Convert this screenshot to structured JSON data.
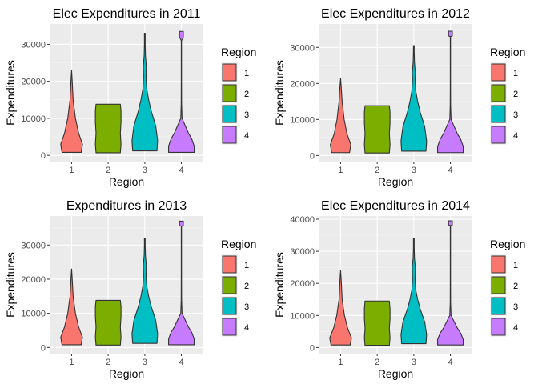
{
  "chart_data": [
    {
      "type": "violin",
      "title": "Elec Expenditures in 2011",
      "xlabel": "Region",
      "ylabel": "Expenditures",
      "categories": [
        "1",
        "2",
        "3",
        "4"
      ],
      "ylim": [
        -1700,
        35500
      ],
      "yticks": [
        0,
        10000,
        20000,
        30000
      ],
      "ytick_labels": [
        "0",
        "10000",
        "20000",
        "30000"
      ],
      "grid": true,
      "legend": {
        "title": "Region",
        "position": "right",
        "labels": [
          "1",
          "2",
          "3",
          "4"
        ]
      },
      "series": [
        {
          "category": "1",
          "color": "#F8766D",
          "min": 800,
          "max": 23000,
          "profile": [
            [
              800,
              0.75
            ],
            [
              3000,
              0.85
            ],
            [
              6000,
              0.55
            ],
            [
              10000,
              0.3
            ],
            [
              15000,
              0.12
            ],
            [
              20000,
              0.05
            ],
            [
              23000,
              0.0
            ]
          ]
        },
        {
          "category": "2",
          "color": "#7CAE00",
          "min": 700,
          "max": 13800,
          "profile": [
            [
              700,
              0.95
            ],
            [
              3000,
              1.0
            ],
            [
              6000,
              0.95
            ],
            [
              9000,
              1.0
            ],
            [
              12000,
              1.0
            ],
            [
              13800,
              0.95
            ]
          ]
        },
        {
          "category": "3",
          "color": "#00BFC4",
          "min": 1200,
          "max": 33000,
          "profile": [
            [
              1200,
              0.95
            ],
            [
              4000,
              1.0
            ],
            [
              8000,
              0.85
            ],
            [
              12000,
              0.5
            ],
            [
              15000,
              0.3
            ],
            [
              18000,
              0.15
            ],
            [
              21000,
              0.1
            ],
            [
              24000,
              0.12
            ],
            [
              27000,
              0.05
            ],
            [
              30000,
              0.03
            ],
            [
              33000,
              0.03
            ]
          ]
        },
        {
          "category": "4",
          "color": "#C77CFF",
          "min": 800,
          "max": 33500,
          "profile": [
            [
              800,
              1.0
            ],
            [
              2500,
              1.0
            ],
            [
              4500,
              0.8
            ],
            [
              6000,
              0.55
            ],
            [
              8000,
              0.3
            ],
            [
              10000,
              0.05
            ],
            [
              14000,
              0.015
            ],
            [
              20000,
              0.01
            ],
            [
              26000,
              0.01
            ],
            [
              31000,
              0.01
            ],
            [
              32000,
              0.15
            ],
            [
              33500,
              0.15
            ]
          ]
        }
      ]
    },
    {
      "type": "violin",
      "title": "Elec Expenditures in 2012",
      "xlabel": "Region",
      "ylabel": "Expenditures",
      "categories": [
        "1",
        "2",
        "3",
        "4"
      ],
      "ylim": [
        -1700,
        36500
      ],
      "yticks": [
        0,
        10000,
        20000,
        30000
      ],
      "ytick_labels": [
        "0",
        "10000",
        "20000",
        "30000"
      ],
      "grid": true,
      "legend": {
        "title": "Region",
        "position": "right",
        "labels": [
          "1",
          "2",
          "3",
          "4"
        ]
      },
      "series": [
        {
          "category": "1",
          "color": "#F8766D",
          "min": 800,
          "max": 21500,
          "profile": [
            [
              800,
              0.7
            ],
            [
              3000,
              0.8
            ],
            [
              6000,
              0.5
            ],
            [
              10000,
              0.28
            ],
            [
              15000,
              0.12
            ],
            [
              19000,
              0.05
            ],
            [
              21500,
              0.0
            ]
          ]
        },
        {
          "category": "2",
          "color": "#7CAE00",
          "min": 700,
          "max": 13800,
          "profile": [
            [
              700,
              0.95
            ],
            [
              3000,
              1.0
            ],
            [
              6000,
              0.95
            ],
            [
              9000,
              1.0
            ],
            [
              12000,
              1.0
            ],
            [
              13800,
              0.95
            ]
          ]
        },
        {
          "category": "3",
          "color": "#00BFC4",
          "min": 1200,
          "max": 30500,
          "profile": [
            [
              1200,
              0.95
            ],
            [
              4000,
              1.0
            ],
            [
              8000,
              0.85
            ],
            [
              12000,
              0.5
            ],
            [
              15000,
              0.3
            ],
            [
              18000,
              0.15
            ],
            [
              21000,
              0.1
            ],
            [
              23000,
              0.12
            ],
            [
              26000,
              0.05
            ],
            [
              29000,
              0.03
            ],
            [
              30500,
              0.03
            ]
          ]
        },
        {
          "category": "4",
          "color": "#C77CFF",
          "min": 800,
          "max": 34500,
          "profile": [
            [
              800,
              1.0
            ],
            [
              2500,
              1.0
            ],
            [
              4500,
              0.8
            ],
            [
              6000,
              0.55
            ],
            [
              8000,
              0.3
            ],
            [
              10000,
              0.05
            ],
            [
              14000,
              0.015
            ],
            [
              20000,
              0.01
            ],
            [
              27000,
              0.01
            ],
            [
              33000,
              0.01
            ],
            [
              33200,
              0.15
            ],
            [
              34500,
              0.15
            ]
          ]
        }
      ]
    },
    {
      "type": "violin",
      "title": "Expenditures in 2013",
      "xlabel": "Region",
      "ylabel": "Expenditures",
      "categories": [
        "1",
        "2",
        "3",
        "4"
      ],
      "ylim": [
        -1800,
        38500
      ],
      "yticks": [
        0,
        10000,
        20000,
        30000
      ],
      "ytick_labels": [
        "0",
        "10000",
        "20000",
        "30000"
      ],
      "grid": true,
      "legend": {
        "title": "Region",
        "position": "right",
        "labels": [
          "1",
          "2",
          "3",
          "4"
        ]
      },
      "series": [
        {
          "category": "1",
          "color": "#F8766D",
          "min": 800,
          "max": 23000,
          "profile": [
            [
              800,
              0.75
            ],
            [
              3000,
              0.85
            ],
            [
              6000,
              0.55
            ],
            [
              10000,
              0.3
            ],
            [
              15000,
              0.12
            ],
            [
              20000,
              0.05
            ],
            [
              23000,
              0.0
            ]
          ]
        },
        {
          "category": "2",
          "color": "#7CAE00",
          "min": 700,
          "max": 13800,
          "profile": [
            [
              700,
              0.95
            ],
            [
              3000,
              1.0
            ],
            [
              6000,
              0.95
            ],
            [
              9000,
              1.0
            ],
            [
              12000,
              1.0
            ],
            [
              13800,
              0.95
            ]
          ]
        },
        {
          "category": "3",
          "color": "#00BFC4",
          "min": 1200,
          "max": 32000,
          "profile": [
            [
              1200,
              0.95
            ],
            [
              4000,
              1.0
            ],
            [
              8000,
              0.85
            ],
            [
              12000,
              0.5
            ],
            [
              15000,
              0.3
            ],
            [
              18000,
              0.15
            ],
            [
              21000,
              0.1
            ],
            [
              24000,
              0.12
            ],
            [
              27000,
              0.05
            ],
            [
              30000,
              0.03
            ],
            [
              32000,
              0.03
            ]
          ]
        },
        {
          "category": "4",
          "color": "#C77CFF",
          "min": 800,
          "max": 37000,
          "profile": [
            [
              800,
              1.0
            ],
            [
              2500,
              1.0
            ],
            [
              4500,
              0.8
            ],
            [
              6000,
              0.55
            ],
            [
              8000,
              0.3
            ],
            [
              10000,
              0.05
            ],
            [
              14000,
              0.015
            ],
            [
              22000,
              0.01
            ],
            [
              30000,
              0.01
            ],
            [
              35500,
              0.01
            ],
            [
              35700,
              0.15
            ],
            [
              37000,
              0.15
            ]
          ]
        }
      ]
    },
    {
      "type": "violin",
      "title": "Elec Expenditures in 2014",
      "xlabel": "Region",
      "ylabel": "Expenditures",
      "categories": [
        "1",
        "2",
        "3",
        "4"
      ],
      "ylim": [
        -1900,
        41000
      ],
      "yticks": [
        0,
        10000,
        20000,
        30000,
        40000
      ],
      "ytick_labels": [
        "0",
        "10000",
        "20000",
        "30000",
        "40000"
      ],
      "grid": true,
      "legend": {
        "title": "Region",
        "position": "right",
        "labels": [
          "1",
          "2",
          "3",
          "4"
        ]
      },
      "series": [
        {
          "category": "1",
          "color": "#F8766D",
          "min": 800,
          "max": 24000,
          "profile": [
            [
              800,
              0.75
            ],
            [
              3000,
              0.85
            ],
            [
              6000,
              0.55
            ],
            [
              10000,
              0.3
            ],
            [
              15000,
              0.12
            ],
            [
              21000,
              0.05
            ],
            [
              24000,
              0.0
            ]
          ]
        },
        {
          "category": "2",
          "color": "#7CAE00",
          "min": 700,
          "max": 14500,
          "profile": [
            [
              700,
              0.95
            ],
            [
              3000,
              1.0
            ],
            [
              6000,
              0.95
            ],
            [
              9000,
              1.0
            ],
            [
              12000,
              1.0
            ],
            [
              14500,
              0.95
            ]
          ]
        },
        {
          "category": "3",
          "color": "#00BFC4",
          "min": 1200,
          "max": 34000,
          "profile": [
            [
              1200,
              0.95
            ],
            [
              4000,
              1.0
            ],
            [
              8000,
              0.85
            ],
            [
              12000,
              0.5
            ],
            [
              15000,
              0.3
            ],
            [
              18000,
              0.15
            ],
            [
              21000,
              0.1
            ],
            [
              25000,
              0.12
            ],
            [
              28000,
              0.05
            ],
            [
              31000,
              0.03
            ],
            [
              34000,
              0.03
            ]
          ]
        },
        {
          "category": "4",
          "color": "#C77CFF",
          "min": 800,
          "max": 39500,
          "profile": [
            [
              800,
              1.0
            ],
            [
              2500,
              1.0
            ],
            [
              4500,
              0.8
            ],
            [
              6000,
              0.55
            ],
            [
              8000,
              0.3
            ],
            [
              10000,
              0.05
            ],
            [
              14000,
              0.015
            ],
            [
              22000,
              0.01
            ],
            [
              32000,
              0.01
            ],
            [
              38000,
              0.01
            ],
            [
              38200,
              0.15
            ],
            [
              39500,
              0.15
            ]
          ]
        }
      ]
    }
  ]
}
